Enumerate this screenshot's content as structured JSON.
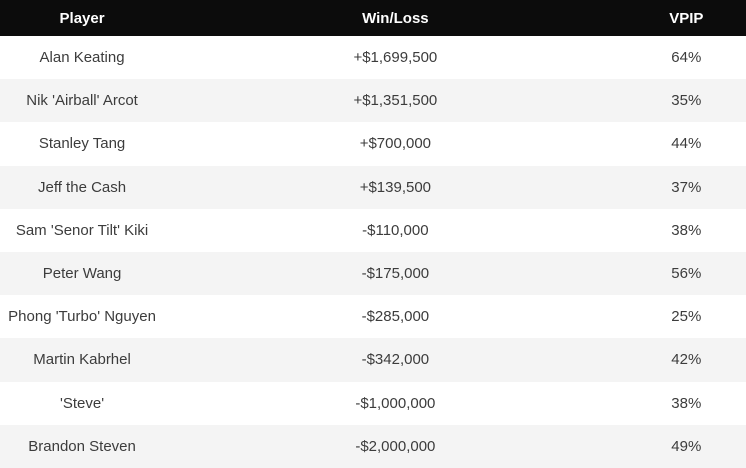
{
  "chart_data": {
    "type": "table",
    "columns": [
      "Player",
      "Win/Loss",
      "VPIP"
    ],
    "rows": [
      [
        "Alan Keating",
        "+$1,699,500",
        "64%"
      ],
      [
        "Nik 'Airball' Arcot",
        "+$1,351,500",
        "35%"
      ],
      [
        "Stanley Tang",
        "+$700,000",
        "44%"
      ],
      [
        "Jeff the Cash",
        "+$139,500",
        "37%"
      ],
      [
        "Sam 'Senor Tilt' Kiki",
        "-$110,000",
        "38%"
      ],
      [
        "Peter Wang",
        "-$175,000",
        "56%"
      ],
      [
        "Phong 'Turbo' Nguyen",
        "-$285,000",
        "25%"
      ],
      [
        "Martin Kabrhel",
        "-$342,000",
        "42%"
      ],
      [
        "'Steve'",
        "-$1,000,000",
        "38%"
      ],
      [
        "Brandon Steven",
        "-$2,000,000",
        "49%"
      ]
    ]
  },
  "colors": {
    "header_bg": "#0c0c0c",
    "header_text": "#ffffff",
    "row_bg": "#ffffff",
    "row_alt_bg": "#f4f4f4",
    "row_text": "#3c3c3c"
  }
}
